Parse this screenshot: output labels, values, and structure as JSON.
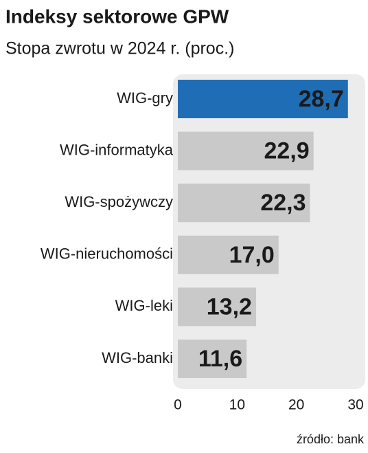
{
  "chart_data": {
    "type": "barh",
    "title": "Indeksy sektorowe GPW",
    "subtitle": "Stopa zwrotu w 2024 r. (proc.)",
    "categories": [
      "WIG-gry",
      "WIG-informatyka",
      "WIG-spożywczy",
      "WIG-nieruchomości",
      "WIG-leki",
      "WIG-banki"
    ],
    "values": [
      28.7,
      22.9,
      22.3,
      17.0,
      13.2,
      11.6
    ],
    "value_labels": [
      "28,7",
      "22,9",
      "22,3",
      "17,0",
      "13,2",
      "11,6"
    ],
    "colors": [
      "#1f6db4",
      "#c9c9c9",
      "#c9c9c9",
      "#c9c9c9",
      "#c9c9c9",
      "#c9c9c9"
    ],
    "xlim": [
      0,
      30
    ],
    "xticks": [
      0,
      10,
      20,
      30
    ],
    "source": "źródło: bank"
  }
}
